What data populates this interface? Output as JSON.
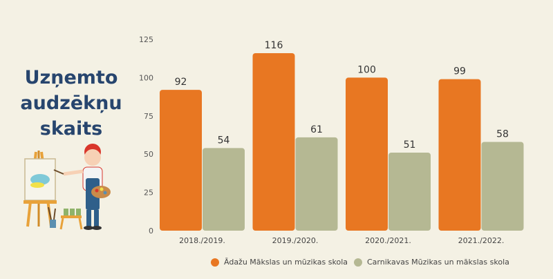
{
  "title_lines": [
    "Uzņemto",
    "audzēkņu",
    "skaits"
  ],
  "colors": {
    "series1": "#e87722",
    "series2": "#b5b893",
    "title": "#27456e"
  },
  "chart_data": {
    "type": "bar",
    "categories": [
      "2018./2019.",
      "2019./2020.",
      "2020./2021.",
      "2021./2022."
    ],
    "series": [
      {
        "name": "Ādažu Mākslas un mūzikas skola",
        "values": [
          92,
          116,
          100,
          99
        ]
      },
      {
        "name": "Carnikavas Mūzikas un mākslas skola",
        "values": [
          54,
          61,
          51,
          58
        ]
      }
    ],
    "ylim": [
      0,
      125
    ],
    "yticks": [
      0,
      25,
      50,
      75,
      100,
      125
    ],
    "grid": false,
    "legend": "bottom"
  }
}
